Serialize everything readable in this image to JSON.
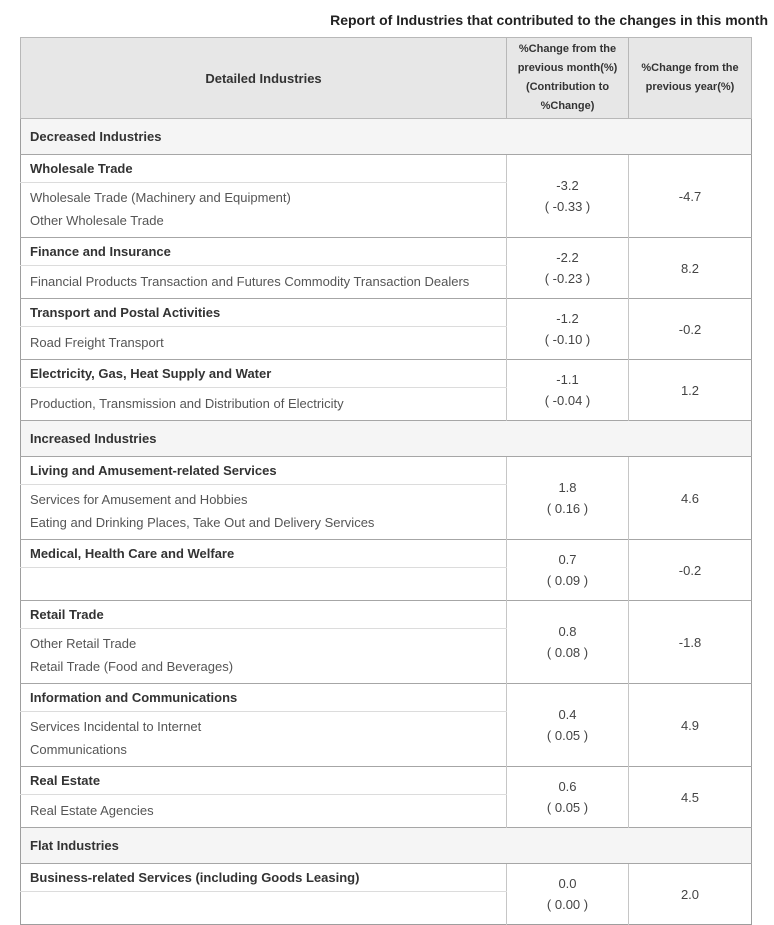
{
  "title": "Report of Industries that contributed to the changes in this month",
  "colors": {
    "header_bg": "#e7e7e7",
    "section_bg": "#f5f5f5",
    "border_strong": "#a6a6a6",
    "border_light": "#dcdcdc"
  },
  "table": {
    "headers": {
      "industries": "Detailed Industries",
      "month": "%Change from the\nprevious month(%)\n(Contribution to\n%Change)",
      "year": "%Change from the\nprevious year(%)"
    },
    "sections": [
      {
        "label": "Decreased Industries",
        "groups": [
          {
            "name": "Wholesale Trade",
            "subs": [
              "Wholesale Trade (Machinery and Equipment)",
              "Other Wholesale Trade"
            ],
            "month_change": "-3.2",
            "month_contribution": "( -0.33 )",
            "year_change": "-4.7"
          },
          {
            "name": "Finance and Insurance",
            "subs": [
              "Financial Products Transaction and Futures Commodity Transaction Dealers"
            ],
            "month_change": "-2.2",
            "month_contribution": "( -0.23 )",
            "year_change": "8.2"
          },
          {
            "name": "Transport and Postal Activities",
            "subs": [
              "Road Freight Transport"
            ],
            "month_change": "-1.2",
            "month_contribution": "( -0.10 )",
            "year_change": "-0.2"
          },
          {
            "name": "Electricity, Gas, Heat Supply and Water",
            "subs": [
              "Production, Transmission and Distribution of Electricity"
            ],
            "month_change": "-1.1",
            "month_contribution": "( -0.04 )",
            "year_change": "1.2"
          }
        ]
      },
      {
        "label": "Increased Industries",
        "groups": [
          {
            "name": "Living and Amusement-related Services",
            "subs": [
              "Services for Amusement and Hobbies",
              "Eating and Drinking Places, Take Out and Delivery Services"
            ],
            "month_change": "1.8",
            "month_contribution": "( 0.16 )",
            "year_change": "4.6"
          },
          {
            "name": "Medical, Health Care and Welfare",
            "subs": [],
            "month_change": "0.7",
            "month_contribution": "( 0.09 )",
            "year_change": "-0.2"
          },
          {
            "name": "Retail Trade",
            "subs": [
              "Other Retail Trade",
              "Retail Trade (Food and Beverages)"
            ],
            "month_change": "0.8",
            "month_contribution": "( 0.08 )",
            "year_change": "-1.8"
          },
          {
            "name": "Information and Communications",
            "subs": [
              "Services Incidental to Internet",
              "Communications"
            ],
            "month_change": "0.4",
            "month_contribution": "( 0.05 )",
            "year_change": "4.9"
          },
          {
            "name": "Real Estate",
            "subs": [
              "Real Estate Agencies"
            ],
            "month_change": "0.6",
            "month_contribution": "( 0.05 )",
            "year_change": "4.5"
          }
        ]
      },
      {
        "label": "Flat Industries",
        "groups": [
          {
            "name": "Business-related Services (including Goods Leasing)",
            "subs": [],
            "month_change": "0.0",
            "month_contribution": "( 0.00 )",
            "year_change": "2.0"
          }
        ]
      }
    ]
  },
  "chart_data": {
    "type": "table",
    "title": "Report of Industries that contributed to the changes in this month",
    "columns": [
      "Detailed Industries",
      "%Change from the previous month(%) (Contribution to %Change)",
      "%Change from the previous year(%)"
    ],
    "rows": [
      {
        "section": "Decreased Industries",
        "industry": "Wholesale Trade",
        "sub_industries": [
          "Wholesale Trade (Machinery and Equipment)",
          "Other Wholesale Trade"
        ],
        "month_change_pct": -3.2,
        "contribution_pct": -0.33,
        "year_change_pct": -4.7
      },
      {
        "section": "Decreased Industries",
        "industry": "Finance and Insurance",
        "sub_industries": [
          "Financial Products Transaction and Futures Commodity Transaction Dealers"
        ],
        "month_change_pct": -2.2,
        "contribution_pct": -0.23,
        "year_change_pct": 8.2
      },
      {
        "section": "Decreased Industries",
        "industry": "Transport and Postal Activities",
        "sub_industries": [
          "Road Freight Transport"
        ],
        "month_change_pct": -1.2,
        "contribution_pct": -0.1,
        "year_change_pct": -0.2
      },
      {
        "section": "Decreased Industries",
        "industry": "Electricity, Gas, Heat Supply and Water",
        "sub_industries": [
          "Production, Transmission and Distribution of Electricity"
        ],
        "month_change_pct": -1.1,
        "contribution_pct": -0.04,
        "year_change_pct": 1.2
      },
      {
        "section": "Increased Industries",
        "industry": "Living and Amusement-related Services",
        "sub_industries": [
          "Services for Amusement and Hobbies",
          "Eating and Drinking Places, Take Out and Delivery Services"
        ],
        "month_change_pct": 1.8,
        "contribution_pct": 0.16,
        "year_change_pct": 4.6
      },
      {
        "section": "Increased Industries",
        "industry": "Medical, Health Care and Welfare",
        "sub_industries": [],
        "month_change_pct": 0.7,
        "contribution_pct": 0.09,
        "year_change_pct": -0.2
      },
      {
        "section": "Increased Industries",
        "industry": "Retail Trade",
        "sub_industries": [
          "Other Retail Trade",
          "Retail Trade (Food and Beverages)"
        ],
        "month_change_pct": 0.8,
        "contribution_pct": 0.08,
        "year_change_pct": -1.8
      },
      {
        "section": "Increased Industries",
        "industry": "Information and Communications",
        "sub_industries": [
          "Services Incidental to Internet",
          "Communications"
        ],
        "month_change_pct": 0.4,
        "contribution_pct": 0.05,
        "year_change_pct": 4.9
      },
      {
        "section": "Increased Industries",
        "industry": "Real Estate",
        "sub_industries": [
          "Real Estate Agencies"
        ],
        "month_change_pct": 0.6,
        "contribution_pct": 0.05,
        "year_change_pct": 4.5
      },
      {
        "section": "Flat Industries",
        "industry": "Business-related Services (including Goods Leasing)",
        "sub_industries": [],
        "month_change_pct": 0.0,
        "contribution_pct": 0.0,
        "year_change_pct": 2.0
      }
    ]
  }
}
